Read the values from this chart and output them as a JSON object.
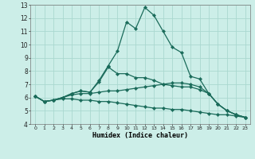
{
  "xlabel": "Humidex (Indice chaleur)",
  "bg_color": "#cceee8",
  "grid_color": "#aad8d0",
  "line_color": "#1a6b5a",
  "xlim": [
    -0.5,
    23.5
  ],
  "ylim": [
    4,
    13
  ],
  "xticks": [
    0,
    1,
    2,
    3,
    4,
    5,
    6,
    7,
    8,
    9,
    10,
    11,
    12,
    13,
    14,
    15,
    16,
    17,
    18,
    19,
    20,
    21,
    22,
    23
  ],
  "yticks": [
    4,
    5,
    6,
    7,
    8,
    9,
    10,
    11,
    12,
    13
  ],
  "series": [
    {
      "x": [
        0,
        1,
        2,
        3,
        4,
        5,
        6,
        7,
        8,
        9,
        10,
        11,
        12,
        13,
        14,
        15,
        16,
        17,
        18,
        19,
        20,
        21,
        22,
        23
      ],
      "y": [
        6.1,
        5.7,
        5.8,
        6.0,
        6.3,
        6.5,
        6.4,
        7.3,
        8.4,
        9.5,
        11.7,
        11.2,
        12.8,
        12.2,
        11.0,
        9.8,
        9.4,
        7.6,
        7.4,
        6.3,
        5.5,
        5.0,
        4.7,
        4.5
      ]
    },
    {
      "x": [
        0,
        1,
        2,
        3,
        4,
        5,
        6,
        7,
        8,
        9,
        10,
        11,
        12,
        13,
        14,
        15,
        16,
        17,
        18,
        19,
        20,
        21,
        22,
        23
      ],
      "y": [
        6.1,
        5.7,
        5.8,
        6.0,
        6.3,
        6.5,
        6.4,
        7.2,
        8.3,
        7.8,
        7.8,
        7.5,
        7.5,
        7.3,
        7.0,
        6.9,
        6.8,
        6.8,
        6.6,
        6.3,
        5.5,
        5.0,
        4.7,
        4.5
      ]
    },
    {
      "x": [
        0,
        1,
        2,
        3,
        4,
        5,
        6,
        7,
        8,
        9,
        10,
        11,
        12,
        13,
        14,
        15,
        16,
        17,
        18,
        19,
        20,
        21,
        22,
        23
      ],
      "y": [
        6.1,
        5.7,
        5.8,
        6.0,
        6.2,
        6.3,
        6.3,
        6.4,
        6.5,
        6.5,
        6.6,
        6.7,
        6.8,
        6.9,
        7.0,
        7.1,
        7.1,
        7.0,
        6.8,
        6.3,
        5.5,
        5.0,
        4.7,
        4.5
      ]
    },
    {
      "x": [
        0,
        1,
        2,
        3,
        4,
        5,
        6,
        7,
        8,
        9,
        10,
        11,
        12,
        13,
        14,
        15,
        16,
        17,
        18,
        19,
        20,
        21,
        22,
        23
      ],
      "y": [
        6.1,
        5.7,
        5.8,
        5.9,
        5.9,
        5.8,
        5.8,
        5.7,
        5.7,
        5.6,
        5.5,
        5.4,
        5.3,
        5.2,
        5.2,
        5.1,
        5.1,
        5.0,
        4.9,
        4.8,
        4.7,
        4.7,
        4.6,
        4.5
      ]
    }
  ]
}
